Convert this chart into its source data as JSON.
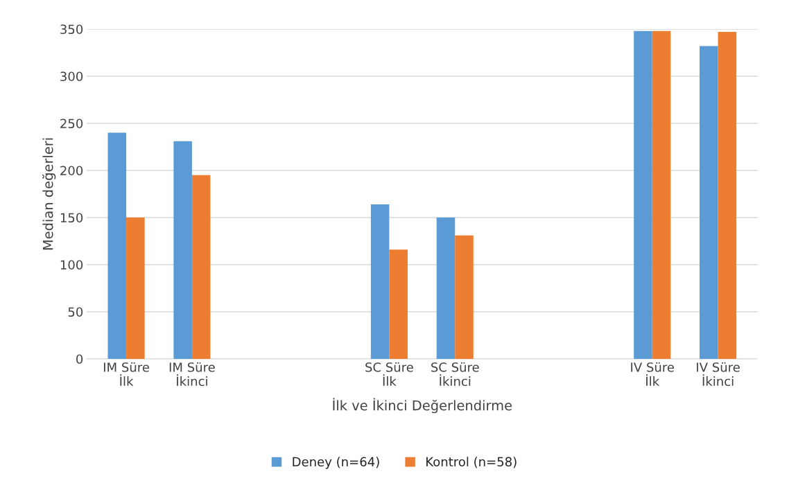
{
  "chart_data": {
    "type": "bar",
    "xlabel": "İlk ve İkinci Değerlendirme",
    "ylabel": "Median değerleri",
    "categories": [
      "IM Süre\nİlk",
      "IM Süre\nİkinci",
      null,
      null,
      "SC Süre\nİlk",
      "SC Süre\nİkinci",
      null,
      null,
      "IV Süre\nİlk",
      "IV Süre\nİkinci"
    ],
    "series": [
      {
        "name": "Deney (n=64)",
        "color": "#5b9bd5",
        "values": [
          240,
          231,
          null,
          0,
          164,
          150,
          null,
          0,
          348,
          332
        ]
      },
      {
        "name": "Kontrol (n=58)",
        "color": "#ed7d31",
        "values": [
          150,
          195,
          null,
          0,
          116,
          131,
          null,
          0,
          348,
          347
        ]
      }
    ],
    "ylim": [
      0,
      350
    ],
    "yticks": [
      0,
      50,
      100,
      150,
      200,
      250,
      300,
      350
    ],
    "grid": "y",
    "legend": "bottom"
  }
}
